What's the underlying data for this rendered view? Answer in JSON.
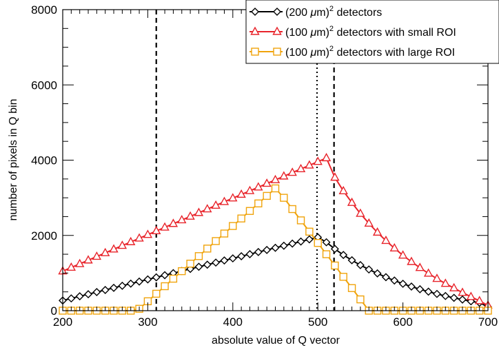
{
  "chart_data": {
    "type": "line",
    "title": "",
    "xlabel": "absolute value of Q vector",
    "ylabel": "number of pixels in Q bin",
    "xlim": [
      200,
      700
    ],
    "ylim": [
      0,
      8000
    ],
    "x_ticks": [
      200,
      300,
      400,
      500,
      600,
      700
    ],
    "y_ticks": [
      0,
      2000,
      4000,
      6000,
      8000
    ],
    "x_tick_labels": [
      "200",
      "300",
      "400",
      "500",
      "600",
      "700"
    ],
    "y_tick_labels": [
      "0",
      "2000",
      "4000",
      "6000",
      "8000"
    ],
    "grid": false,
    "legend_position": "top-right",
    "vertical_lines": [
      {
        "x": 310,
        "style": "dashed",
        "color": "#000000"
      },
      {
        "x": 499,
        "style": "dotted",
        "color": "#000000"
      },
      {
        "x": 519,
        "style": "dashed",
        "color": "#000000"
      }
    ],
    "series": [
      {
        "name_prefix": "(200 ",
        "name_mu": "μ",
        "name_unit": "m)",
        "name_exp": "2",
        "name_rest": " detectors",
        "color": "#000000",
        "marker": "diamond",
        "x": [
          200,
          210,
          220,
          230,
          240,
          250,
          260,
          270,
          280,
          290,
          300,
          310,
          320,
          330,
          340,
          350,
          360,
          370,
          380,
          390,
          400,
          410,
          420,
          430,
          440,
          450,
          460,
          470,
          480,
          490,
          500,
          510,
          520,
          530,
          540,
          550,
          560,
          570,
          580,
          590,
          600,
          610,
          620,
          630,
          640,
          650,
          660,
          670,
          680,
          690,
          700
        ],
        "values": [
          270,
          326,
          382,
          438,
          494,
          550,
          606,
          662,
          718,
          774,
          830,
          886,
          942,
          998,
          1054,
          1110,
          1166,
          1222,
          1278,
          1334,
          1390,
          1446,
          1502,
          1558,
          1614,
          1670,
          1726,
          1782,
          1838,
          1894,
          1950,
          1818,
          1640,
          1480,
          1340,
          1210,
          1095,
          990,
          890,
          800,
          715,
          640,
          570,
          505,
          445,
          390,
          340,
          295,
          250,
          210,
          100
        ]
      },
      {
        "name_prefix": "(100 ",
        "name_mu": "μ",
        "name_unit": "m)",
        "name_exp": "2",
        "name_rest": " detectors with small ROI",
        "color": "#e8232a",
        "marker": "triangle",
        "x": [
          200,
          210,
          220,
          230,
          240,
          250,
          260,
          270,
          280,
          290,
          300,
          310,
          320,
          330,
          340,
          350,
          360,
          370,
          380,
          390,
          400,
          410,
          420,
          430,
          440,
          450,
          460,
          470,
          480,
          490,
          500,
          510,
          520,
          530,
          540,
          550,
          560,
          570,
          580,
          590,
          600,
          610,
          620,
          630,
          640,
          650,
          660,
          670,
          680,
          690,
          700
        ],
        "values": [
          1050,
          1147,
          1244,
          1341,
          1438,
          1535,
          1632,
          1729,
          1826,
          1923,
          2020,
          2117,
          2214,
          2311,
          2408,
          2505,
          2602,
          2699,
          2796,
          2893,
          2990,
          3087,
          3184,
          3281,
          3378,
          3475,
          3572,
          3669,
          3766,
          3863,
          3960,
          4057,
          3540,
          3180,
          2870,
          2580,
          2320,
          2080,
          1860,
          1660,
          1470,
          1300,
          1140,
          990,
          850,
          720,
          600,
          480,
          370,
          260,
          140
        ]
      },
      {
        "name_prefix": "(100 ",
        "name_mu": "μ",
        "name_unit": "m)",
        "name_exp": "2",
        "name_rest": " detectors with large ROI",
        "color": "#f0a30a",
        "marker": "square",
        "x": [
          200,
          210,
          220,
          230,
          240,
          250,
          260,
          270,
          280,
          290,
          300,
          310,
          320,
          330,
          340,
          350,
          360,
          370,
          380,
          390,
          400,
          410,
          420,
          430,
          440,
          450,
          460,
          470,
          480,
          490,
          500,
          510,
          520,
          530,
          540,
          550,
          560,
          570,
          580,
          590,
          600,
          610,
          620,
          630,
          640,
          650,
          660,
          670,
          680,
          690,
          700
        ],
        "values": [
          0,
          0,
          0,
          0,
          0,
          0,
          0,
          0,
          0,
          50,
          250,
          450,
          650,
          850,
          1050,
          1250,
          1450,
          1650,
          1850,
          2050,
          2250,
          2450,
          2650,
          2850,
          3050,
          3250,
          3000,
          2700,
          2400,
          2100,
          1800,
          1500,
          1200,
          900,
          600,
          300,
          0,
          0,
          0,
          0,
          0,
          0,
          0,
          0,
          0,
          0,
          0,
          0,
          0,
          0,
          0
        ]
      }
    ]
  }
}
